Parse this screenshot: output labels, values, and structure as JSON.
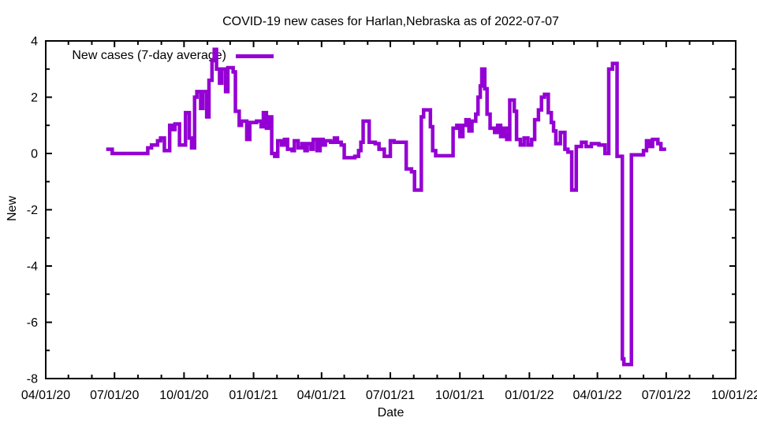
{
  "page": {
    "background": "#ffffff",
    "text_color": "#000000"
  },
  "chart_data": {
    "type": "line",
    "style": "steps",
    "title": "COVID-19 new cases for Harlan,Nebraska as of 2022-07-07",
    "xlabel": "Date",
    "ylabel": "New",
    "legend_label": "New cases (7-day average)",
    "legend_position": "top-left-inside",
    "grid": false,
    "line_color": "#9400d3",
    "line_width": 4.5,
    "axis_color": "#000000",
    "x_range": [
      "2020-04-01",
      "2022-10-01"
    ],
    "ylim": [
      -8,
      4
    ],
    "x_ticks": [
      {
        "date": "2020-04-01",
        "label": "04/01/20"
      },
      {
        "date": "2020-07-01",
        "label": "07/01/20"
      },
      {
        "date": "2020-10-01",
        "label": "10/01/20"
      },
      {
        "date": "2021-01-01",
        "label": "01/01/21"
      },
      {
        "date": "2021-04-01",
        "label": "04/01/21"
      },
      {
        "date": "2021-07-01",
        "label": "07/01/21"
      },
      {
        "date": "2021-10-01",
        "label": "10/01/21"
      },
      {
        "date": "2022-01-01",
        "label": "01/01/22"
      },
      {
        "date": "2022-04-01",
        "label": "04/01/22"
      },
      {
        "date": "2022-07-01",
        "label": "07/01/22"
      },
      {
        "date": "2022-10-01",
        "label": "10/01/22"
      }
    ],
    "y_ticks": [
      {
        "value": -8,
        "label": "-8"
      },
      {
        "value": -6,
        "label": "-6"
      },
      {
        "value": -4,
        "label": "-4"
      },
      {
        "value": -2,
        "label": "-2"
      },
      {
        "value": 0,
        "label": "0"
      },
      {
        "value": 2,
        "label": "2"
      },
      {
        "value": 4,
        "label": "4"
      }
    ],
    "y_minor_ticks": [
      -7,
      -5,
      -3,
      -1,
      1,
      3
    ],
    "series": [
      {
        "name": "New cases (7-day average)",
        "color": "#9400d3",
        "points": [
          [
            "2020-06-20",
            0.15
          ],
          [
            "2020-06-28",
            0
          ],
          [
            "2020-08-14",
            0.2
          ],
          [
            "2020-08-19",
            0.3
          ],
          [
            "2020-08-27",
            0.45
          ],
          [
            "2020-08-31",
            0.55
          ],
          [
            "2020-09-05",
            0.1
          ],
          [
            "2020-09-12",
            1.0
          ],
          [
            "2020-09-16",
            0.85
          ],
          [
            "2020-09-19",
            1.05
          ],
          [
            "2020-09-25",
            0.3
          ],
          [
            "2020-10-03",
            1.45
          ],
          [
            "2020-10-08",
            0.55
          ],
          [
            "2020-10-11",
            0.2
          ],
          [
            "2020-10-15",
            2.0
          ],
          [
            "2020-10-18",
            2.2
          ],
          [
            "2020-10-23",
            1.6
          ],
          [
            "2020-10-26",
            2.2
          ],
          [
            "2020-10-31",
            1.3
          ],
          [
            "2020-11-03",
            2.6
          ],
          [
            "2020-11-07",
            3.3
          ],
          [
            "2020-11-10",
            3.7
          ],
          [
            "2020-11-13",
            3.0
          ],
          [
            "2020-11-17",
            2.5
          ],
          [
            "2020-11-20",
            3.0
          ],
          [
            "2020-11-25",
            2.2
          ],
          [
            "2020-11-28",
            3.05
          ],
          [
            "2020-12-05",
            2.9
          ],
          [
            "2020-12-08",
            1.5
          ],
          [
            "2020-12-13",
            1.0
          ],
          [
            "2020-12-16",
            1.15
          ],
          [
            "2020-12-23",
            0.5
          ],
          [
            "2020-12-27",
            1.1
          ],
          [
            "2021-01-05",
            1.15
          ],
          [
            "2021-01-11",
            0.95
          ],
          [
            "2021-01-14",
            1.45
          ],
          [
            "2021-01-18",
            0.9
          ],
          [
            "2021-01-22",
            1.3
          ],
          [
            "2021-01-25",
            0
          ],
          [
            "2021-01-29",
            -0.1
          ],
          [
            "2021-02-02",
            0.45
          ],
          [
            "2021-02-07",
            0.3
          ],
          [
            "2021-02-11",
            0.5
          ],
          [
            "2021-02-15",
            0.15
          ],
          [
            "2021-02-21",
            0.1
          ],
          [
            "2021-02-24",
            0.45
          ],
          [
            "2021-03-01",
            0.2
          ],
          [
            "2021-03-06",
            0.35
          ],
          [
            "2021-03-10",
            0.1
          ],
          [
            "2021-03-13",
            0.35
          ],
          [
            "2021-03-18",
            0.15
          ],
          [
            "2021-03-21",
            0.5
          ],
          [
            "2021-03-26",
            0.1
          ],
          [
            "2021-03-30",
            0.5
          ],
          [
            "2021-04-03",
            0.3
          ],
          [
            "2021-04-06",
            0.45
          ],
          [
            "2021-04-13",
            0.4
          ],
          [
            "2021-04-18",
            0.55
          ],
          [
            "2021-04-22",
            0.4
          ],
          [
            "2021-04-27",
            0.3
          ],
          [
            "2021-05-01",
            -0.15
          ],
          [
            "2021-05-15",
            -0.1
          ],
          [
            "2021-05-20",
            0.1
          ],
          [
            "2021-05-23",
            0.4
          ],
          [
            "2021-05-26",
            1.15
          ],
          [
            "2021-06-03",
            0.4
          ],
          [
            "2021-06-11",
            0.35
          ],
          [
            "2021-06-16",
            0.15
          ],
          [
            "2021-06-23",
            -0.1
          ],
          [
            "2021-07-01",
            0.45
          ],
          [
            "2021-07-06",
            0.4
          ],
          [
            "2021-07-22",
            -0.55
          ],
          [
            "2021-07-29",
            -0.65
          ],
          [
            "2021-08-02",
            -1.3
          ],
          [
            "2021-08-11",
            1.3
          ],
          [
            "2021-08-14",
            1.55
          ],
          [
            "2021-08-23",
            0.95
          ],
          [
            "2021-08-26",
            0.1
          ],
          [
            "2021-08-30",
            -0.08
          ],
          [
            "2021-09-22",
            0.9
          ],
          [
            "2021-09-27",
            1.0
          ],
          [
            "2021-10-01",
            0.6
          ],
          [
            "2021-10-05",
            1.0
          ],
          [
            "2021-10-09",
            1.2
          ],
          [
            "2021-10-13",
            0.8
          ],
          [
            "2021-10-17",
            1.15
          ],
          [
            "2021-10-22",
            1.4
          ],
          [
            "2021-10-25",
            2.0
          ],
          [
            "2021-10-28",
            2.4
          ],
          [
            "2021-10-30",
            3.0
          ],
          [
            "2021-11-03",
            2.3
          ],
          [
            "2021-11-06",
            1.4
          ],
          [
            "2021-11-10",
            0.9
          ],
          [
            "2021-11-16",
            0.75
          ],
          [
            "2021-11-20",
            1.0
          ],
          [
            "2021-11-24",
            0.6
          ],
          [
            "2021-11-28",
            0.9
          ],
          [
            "2021-12-02",
            0.5
          ],
          [
            "2021-12-06",
            1.9
          ],
          [
            "2021-12-12",
            1.5
          ],
          [
            "2021-12-15",
            0.5
          ],
          [
            "2021-12-20",
            0.3
          ],
          [
            "2021-12-25",
            0.55
          ],
          [
            "2021-12-30",
            0.3
          ],
          [
            "2022-01-04",
            0.5
          ],
          [
            "2022-01-08",
            1.2
          ],
          [
            "2022-01-13",
            1.55
          ],
          [
            "2022-01-17",
            2.0
          ],
          [
            "2022-01-21",
            2.1
          ],
          [
            "2022-01-26",
            1.45
          ],
          [
            "2022-01-30",
            1.1
          ],
          [
            "2022-02-02",
            0.8
          ],
          [
            "2022-02-05",
            0.35
          ],
          [
            "2022-02-11",
            0.75
          ],
          [
            "2022-02-17",
            0.15
          ],
          [
            "2022-02-21",
            0.05
          ],
          [
            "2022-02-26",
            -1.3
          ],
          [
            "2022-03-04",
            0.25
          ],
          [
            "2022-03-11",
            0.4
          ],
          [
            "2022-03-17",
            0.25
          ],
          [
            "2022-03-24",
            0.35
          ],
          [
            "2022-04-03",
            0.3
          ],
          [
            "2022-04-11",
            0
          ],
          [
            "2022-04-16",
            3.0
          ],
          [
            "2022-04-21",
            3.2
          ],
          [
            "2022-04-27",
            -0.1
          ],
          [
            "2022-05-04",
            -7.3
          ],
          [
            "2022-05-06",
            -7.5
          ],
          [
            "2022-05-16",
            -0.05
          ],
          [
            "2022-06-01",
            0.1
          ],
          [
            "2022-06-05",
            0.45
          ],
          [
            "2022-06-09",
            0.25
          ],
          [
            "2022-06-13",
            0.5
          ],
          [
            "2022-06-20",
            0.35
          ],
          [
            "2022-06-24",
            0.15
          ],
          [
            "2022-07-01",
            0.15
          ]
        ]
      }
    ]
  }
}
